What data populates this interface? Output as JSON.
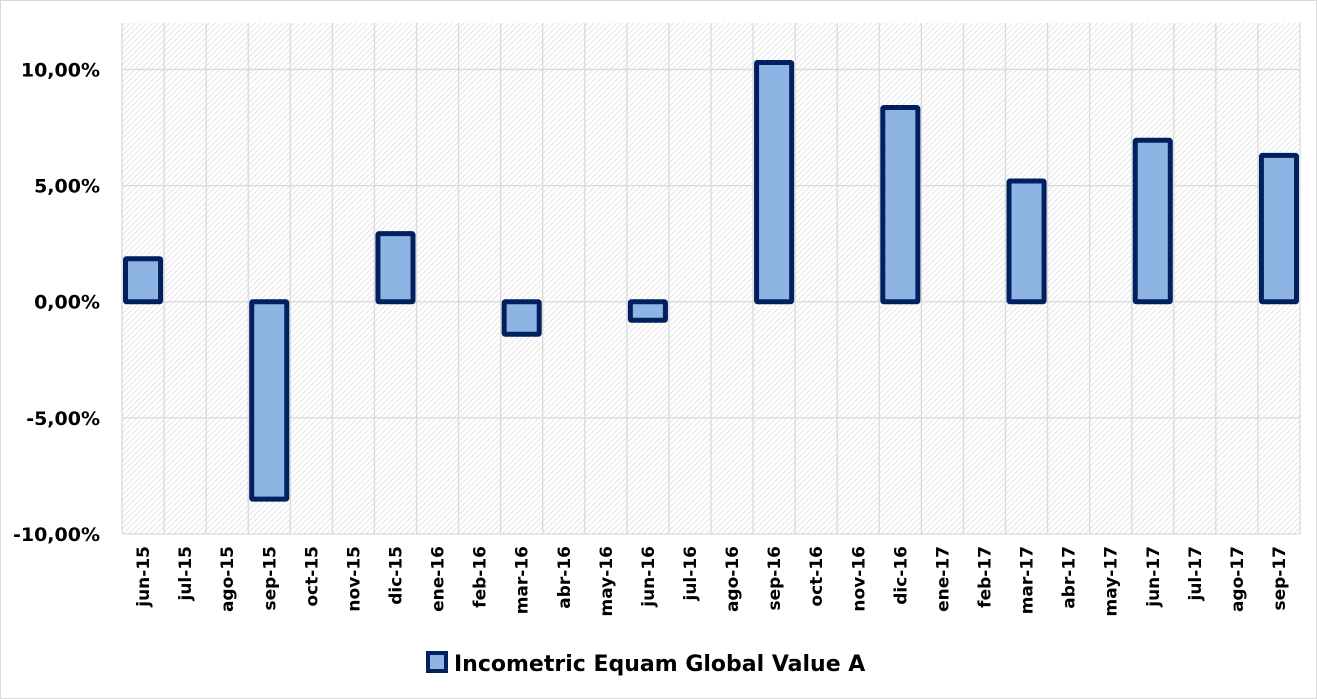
{
  "chart_data": {
    "type": "bar",
    "title": "",
    "xlabel": "",
    "ylabel": "",
    "categories": [
      "jun-15",
      "jul-15",
      "ago-15",
      "sep-15",
      "oct-15",
      "nov-15",
      "dic-15",
      "ene-16",
      "feb-16",
      "mar-16",
      "abr-16",
      "may-16",
      "jun-16",
      "jul-16",
      "ago-16",
      "sep-16",
      "oct-16",
      "nov-16",
      "dic-16",
      "ene-17",
      "feb-17",
      "mar-17",
      "abr-17",
      "may-17",
      "jun-17",
      "jul-17",
      "ago-17",
      "sep-17"
    ],
    "series": [
      {
        "name": "Incometric Equam Global Value A",
        "values": [
          1.85,
          null,
          null,
          -8.5,
          null,
          null,
          2.93,
          null,
          null,
          -1.4,
          null,
          null,
          -0.8,
          null,
          null,
          10.3,
          null,
          null,
          8.36,
          null,
          null,
          5.2,
          null,
          null,
          6.95,
          null,
          null,
          6.3
        ]
      }
    ],
    "ylim": [
      -10,
      12
    ],
    "yticks": [
      -10,
      -5,
      0,
      5,
      10
    ],
    "ytick_labels": [
      "-10,00%",
      "-5,00%",
      "0,00%",
      "5,00%",
      "10,00%"
    ],
    "grid": true,
    "legend": "bottom",
    "colors": {
      "fill": "#8eb4e3",
      "stroke": "#002060",
      "grid": "#d9d9d9"
    }
  }
}
